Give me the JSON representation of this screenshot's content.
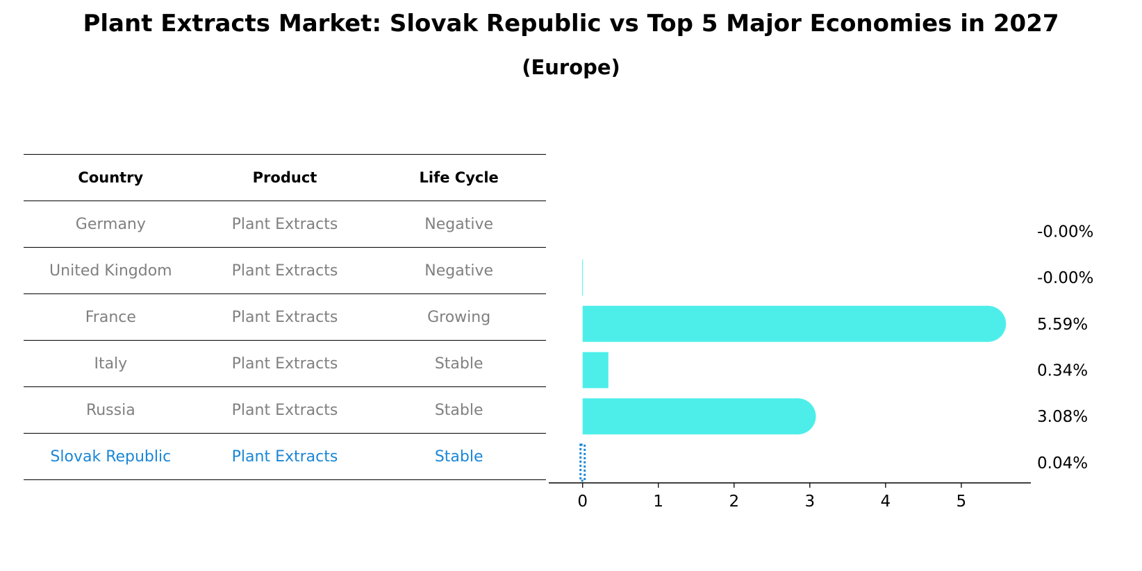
{
  "title": "Plant Extracts Market: Slovak Republic vs Top 5 Major Economies in 2027",
  "subtitle": "(Europe)",
  "table": {
    "headers": [
      "Country",
      "Product",
      "Life Cycle"
    ],
    "rows": [
      {
        "country": "Germany",
        "product": "Plant Extracts",
        "life_cycle": "Negative"
      },
      {
        "country": "United Kingdom",
        "product": "Plant Extracts",
        "life_cycle": "Negative"
      },
      {
        "country": "France",
        "product": "Plant Extracts",
        "life_cycle": "Growing"
      },
      {
        "country": "Italy",
        "product": "Plant Extracts",
        "life_cycle": "Stable"
      },
      {
        "country": "Russia",
        "product": "Plant Extracts",
        "life_cycle": "Stable"
      },
      {
        "country": "Slovak Republic",
        "product": "Plant Extracts",
        "life_cycle": "Stable"
      }
    ]
  },
  "chart_data": {
    "type": "bar",
    "orientation": "horizontal",
    "categories": [
      "Germany",
      "United Kingdom",
      "France",
      "Italy",
      "Russia",
      "Slovak Republic"
    ],
    "values": [
      -0.0,
      -0.0,
      5.59,
      0.34,
      3.08,
      0.04
    ],
    "value_labels": [
      "-0.00%",
      "-0.00%",
      "5.59%",
      "0.34%",
      "3.08%",
      "0.04%"
    ],
    "xlim": [
      -0.3,
      5.9
    ],
    "xticks": [
      0,
      1,
      2,
      3,
      4,
      5
    ],
    "xtick_labels": [
      "0",
      "1",
      "2",
      "3",
      "4",
      "5"
    ],
    "bar_color": "#4deeea",
    "highlight_color": "#1a86d6",
    "highlight_category": "Slovak Republic",
    "grid": false
  }
}
